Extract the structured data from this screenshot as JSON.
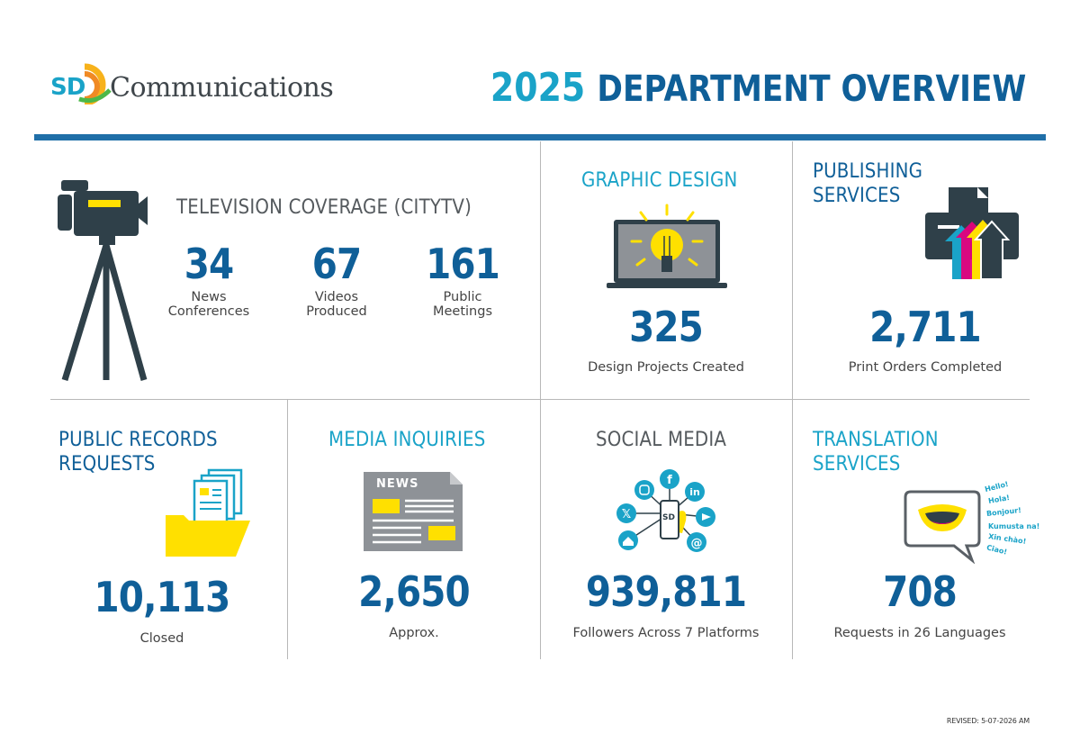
{
  "header": {
    "logo_mark": "SD",
    "logo_text": "Communications",
    "title_year": "2025",
    "title_rest": "DEPARTMENT OVERVIEW"
  },
  "colors": {
    "dark_blue": "#0f5f98",
    "teal": "#1aa3c8",
    "yellow": "#ffe000",
    "charcoal": "#2f4049",
    "rule_blue": "#1f6fa8"
  },
  "tv": {
    "title": "TELEVISION COVERAGE (CITYTV)",
    "icon": "video-camera-on-tripod-icon",
    "stats": [
      {
        "value": "34",
        "label": "News Conferences"
      },
      {
        "value": "67",
        "label": "Videos Produced"
      },
      {
        "value": "161",
        "label": "Public Meetings"
      }
    ]
  },
  "graphic": {
    "title": "GRAPHIC DESIGN",
    "icon": "laptop-lightbulb-icon",
    "value": "325",
    "label": "Design Projects Created"
  },
  "publishing": {
    "title_1": "PUBLISHING",
    "title_2": "SERVICES",
    "icon": "printer-icon",
    "value": "2,711",
    "label": "Print Orders Completed"
  },
  "records": {
    "title_1": "PUBLIC RECORDS",
    "title_2": "REQUESTS",
    "icon": "folder-documents-icon",
    "value": "10,113",
    "label": "Closed"
  },
  "media": {
    "title": "MEDIA INQUIRIES",
    "icon": "newspaper-icon",
    "news_word": "NEWS",
    "value": "2,650",
    "label": "Approx."
  },
  "social": {
    "title": "SOCIAL MEDIA",
    "icon": "phone-social-network-icon",
    "phone_mark": "SD",
    "platforms": [
      "instagram-icon",
      "facebook-icon",
      "linkedin-icon",
      "x-icon",
      "youtube-icon",
      "nextdoor-icon",
      "threads-icon"
    ],
    "value": "939,811",
    "label": "Followers Across 7 Platforms"
  },
  "translation": {
    "title_1": "TRANSLATION",
    "title_2": "SERVICES",
    "icon": "speech-bubble-mouth-icon",
    "greetings": [
      "Hello!",
      "Hola!",
      "Bonjour!",
      "Kumusta na!",
      "Xin chào!",
      "Ciao!"
    ],
    "value": "708",
    "label": "Requests in 26 Languages"
  },
  "footer": {
    "revised": "REVISED: 5-07-2026 AM"
  }
}
